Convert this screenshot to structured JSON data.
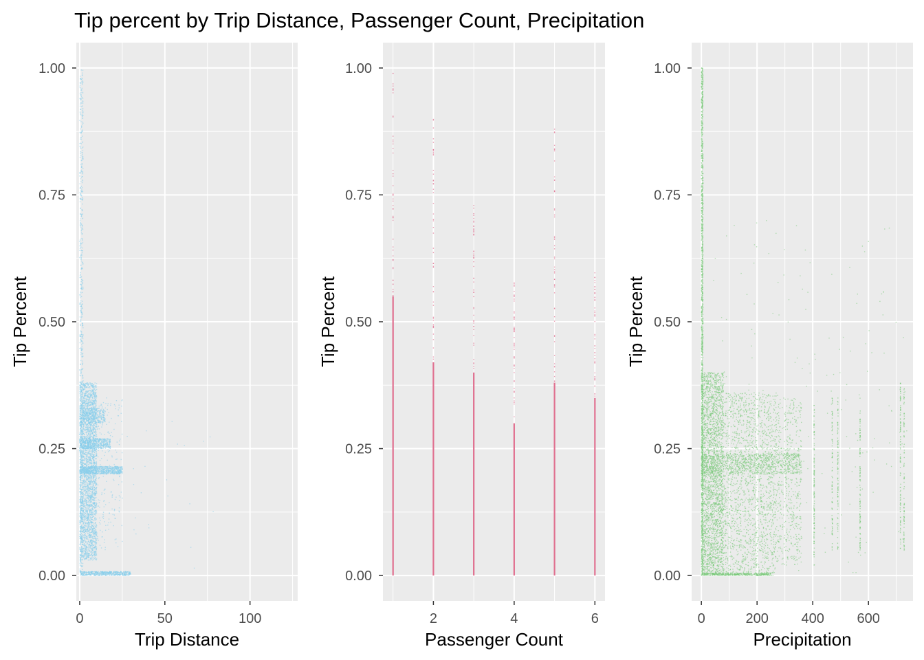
{
  "title": "Tip percent by Trip Distance, Passenger Count, Precipitation",
  "colors": {
    "panel_background": "#ebebeb",
    "grid": "#ffffff",
    "tick": "#333333",
    "tick_label": "#4d4d4d"
  },
  "chart_data": [
    {
      "type": "scatter",
      "title": "",
      "xlabel": "Trip Distance",
      "ylabel": "Tip Percent",
      "xlim": [
        -2,
        128
      ],
      "ylim": [
        -0.05,
        1.05
      ],
      "x_ticks": [
        0,
        50,
        100
      ],
      "x_tick_labels": [
        "0",
        "50",
        "100"
      ],
      "y_ticks": [
        0,
        0.25,
        0.5,
        0.75,
        1
      ],
      "y_tick_labels": [
        "0.00",
        "0.25",
        "0.50",
        "0.75",
        "1.00"
      ],
      "grid": true,
      "color": "#87ceeb",
      "point_clusters": [
        {
          "x_range": [
            0,
            2
          ],
          "y_range": [
            0,
            1.0
          ],
          "count": 700
        },
        {
          "x_range": [
            0,
            10
          ],
          "y_range": [
            0.03,
            0.38
          ],
          "count": 3000
        },
        {
          "x_range": [
            0,
            25
          ],
          "y_range": [
            0.2,
            0.215
          ],
          "count": 700
        },
        {
          "x_range": [
            0,
            18
          ],
          "y_range": [
            0.25,
            0.27
          ],
          "count": 500
        },
        {
          "x_range": [
            0,
            15
          ],
          "y_range": [
            0.3,
            0.33
          ],
          "count": 400
        },
        {
          "x_range": [
            0,
            30
          ],
          "y_range": [
            0.0,
            0.008
          ],
          "count": 500
        },
        {
          "x_range": [
            5,
            25
          ],
          "y_range": [
            0.05,
            0.35
          ],
          "count": 250
        },
        {
          "x_range": [
            20,
            80
          ],
          "y_range": [
            0.0,
            0.32
          ],
          "count": 25
        }
      ]
    },
    {
      "type": "scatter",
      "title": "",
      "xlabel": "Passenger Count",
      "ylabel": "Tip Percent",
      "xlim": [
        0.75,
        6.25
      ],
      "ylim": [
        -0.05,
        1.05
      ],
      "x_ticks": [
        2,
        4,
        6
      ],
      "x_tick_labels": [
        "2",
        "4",
        "6"
      ],
      "y_ticks": [
        0,
        0.25,
        0.5,
        0.75,
        1
      ],
      "y_tick_labels": [
        "0.00",
        "0.25",
        "0.50",
        "0.75",
        "1.00"
      ],
      "grid": true,
      "color": "#e07090",
      "x_values": [
        1,
        2,
        3,
        4,
        5,
        6
      ],
      "dense_max": [
        0.55,
        0.42,
        0.4,
        0.3,
        0.38,
        0.35
      ],
      "sparse_max": [
        1.0,
        0.9,
        0.74,
        0.58,
        0.88,
        0.6
      ]
    },
    {
      "type": "scatter",
      "title": "",
      "xlabel": "Precipitation",
      "ylabel": "Tip Percent",
      "xlim": [
        -35,
        760
      ],
      "ylim": [
        -0.05,
        1.05
      ],
      "x_ticks": [
        0,
        200,
        400,
        600
      ],
      "x_tick_labels": [
        "0",
        "200",
        "400",
        "600"
      ],
      "y_ticks": [
        0,
        0.25,
        0.5,
        0.75,
        1
      ],
      "y_tick_labels": [
        "0.00",
        "0.25",
        "0.50",
        "0.75",
        "1.00"
      ],
      "grid": true,
      "color": "#78c878",
      "point_clusters": [
        {
          "x_range": [
            0,
            6
          ],
          "y_range": [
            0,
            1.0
          ],
          "count": 1400
        },
        {
          "x_range": [
            0,
            80
          ],
          "y_range": [
            0,
            0.4
          ],
          "count": 2600
        },
        {
          "x_range": [
            80,
            270
          ],
          "y_range": [
            0,
            0.36
          ],
          "count": 1800
        },
        {
          "x_range": [
            270,
            360
          ],
          "y_range": [
            0.02,
            0.35
          ],
          "count": 500
        },
        {
          "x_range": [
            0,
            360
          ],
          "y_range": [
            0.2,
            0.24
          ],
          "count": 900
        },
        {
          "x_range": [
            0,
            250
          ],
          "y_range": [
            0.0,
            0.005
          ],
          "count": 400
        },
        {
          "x_range": [
            0,
            740
          ],
          "y_range": [
            0.0,
            0.7
          ],
          "count": 180
        }
      ],
      "columns": [
        {
          "x": 405,
          "y_range": [
            0.02,
            0.34
          ],
          "count": 120
        },
        {
          "x": 470,
          "y_range": [
            0.05,
            0.35
          ],
          "count": 90
        },
        {
          "x": 490,
          "y_range": [
            0.05,
            0.35
          ],
          "count": 90
        },
        {
          "x": 570,
          "y_range": [
            0.05,
            0.33
          ],
          "count": 110
        },
        {
          "x": 715,
          "y_range": [
            0.05,
            0.38
          ],
          "count": 110
        },
        {
          "x": 728,
          "y_range": [
            0.05,
            0.38
          ],
          "count": 90
        }
      ]
    }
  ]
}
